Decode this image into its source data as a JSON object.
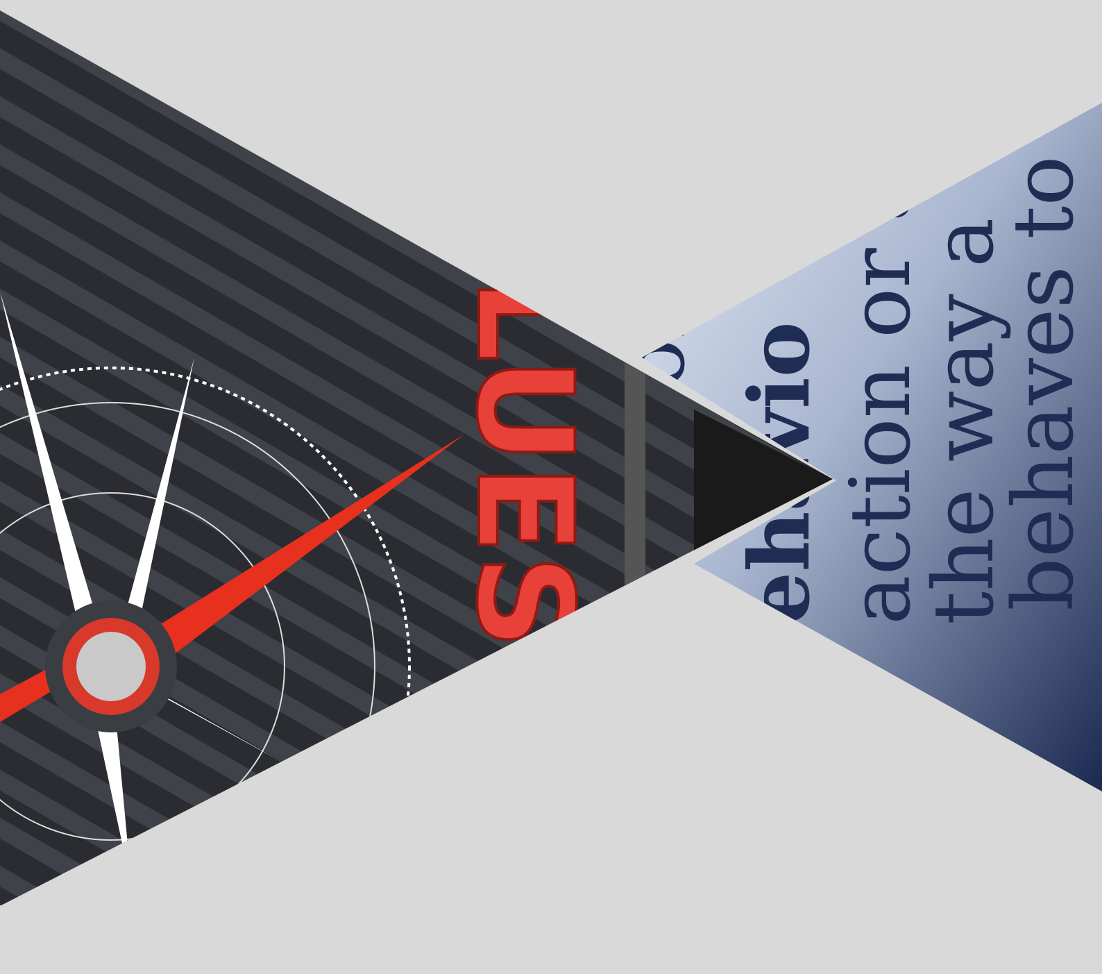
{
  "compass_image": {
    "word": "LUES"
  },
  "dictionary_image": {
    "lines": [
      "of",
      "ehavio",
      "action or a",
      "the way a",
      "behaves to"
    ]
  }
}
